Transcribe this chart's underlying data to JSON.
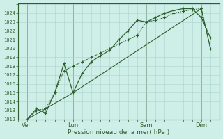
{
  "bg_color": "#ceeee8",
  "grid_color": "#aad4cc",
  "line_color": "#2d5e2d",
  "xlabel": "Pression niveau de la mer( hPa )",
  "ylim": [
    1012,
    1025
  ],
  "ytick_labels": [
    "1012",
    "1013",
    "1014",
    "1015",
    "1016",
    "1017",
    "1018",
    "1019",
    "1020",
    "1021",
    "1022",
    "1023",
    "1024"
  ],
  "ytick_vals": [
    1012,
    1013,
    1014,
    1015,
    1016,
    1017,
    1018,
    1019,
    1020,
    1021,
    1022,
    1023,
    1024
  ],
  "xlim": [
    0,
    22
  ],
  "xtick_labels": [
    "Ven",
    "Lun",
    "Sam",
    "Dim"
  ],
  "xtick_positions": [
    1,
    6,
    14,
    20
  ],
  "vline_positions": [
    1,
    6,
    14,
    20
  ],
  "series1_x": [
    1,
    2,
    3,
    4,
    5,
    6,
    7,
    8,
    9,
    10,
    11,
    12,
    13,
    14,
    15,
    16,
    17,
    18,
    19,
    20,
    21
  ],
  "series1_y": [
    1012.0,
    1013.0,
    1013.2,
    1015.0,
    1017.5,
    1018.0,
    1018.5,
    1019.0,
    1019.5,
    1020.0,
    1020.5,
    1021.0,
    1021.5,
    1023.0,
    1023.2,
    1023.5,
    1024.0,
    1024.2,
    1024.4,
    1024.5,
    1020.0
  ],
  "series2_x": [
    1,
    2,
    3,
    4,
    5,
    6,
    7,
    8,
    9,
    10,
    11,
    12,
    13,
    14,
    15,
    16,
    17,
    18,
    19,
    20,
    21
  ],
  "series2_y": [
    1012.0,
    1013.2,
    1012.7,
    1015.0,
    1018.3,
    1015.0,
    1017.2,
    1018.5,
    1019.2,
    1019.8,
    1021.0,
    1022.0,
    1023.2,
    1023.0,
    1023.5,
    1024.0,
    1024.3,
    1024.5,
    1024.5,
    1023.5,
    1021.2
  ],
  "series3_x": [
    1,
    6,
    20,
    21
  ],
  "series3_y": [
    1012.0,
    1015.0,
    1024.5,
    1020.0
  ]
}
